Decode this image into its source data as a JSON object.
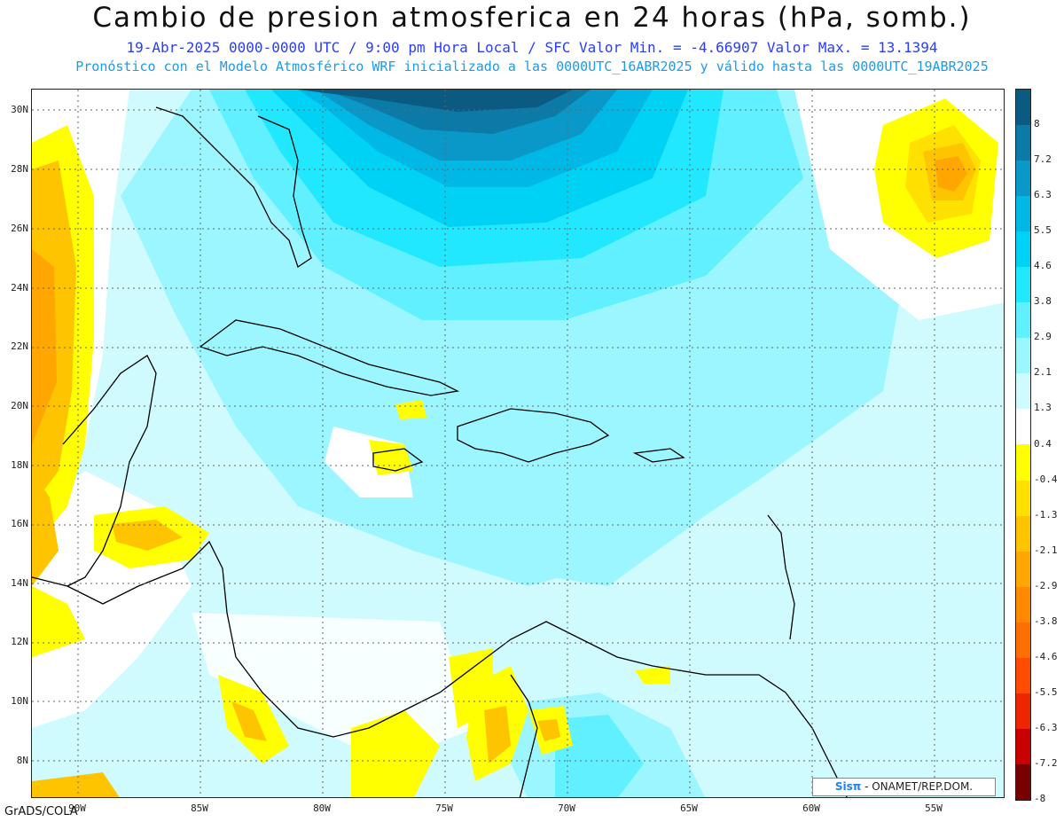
{
  "header": {
    "title": "Cambio de presion atmosferica en 24 horas (hPa, somb.)",
    "subtitle1": "19-Abr-2025   0000-0000 UTC / 9:00 pm Hora Local / SFC    Valor Min. = -4.66907  Valor Max. = 13.1394",
    "subtitle2": "Pronóstico con el Modelo Atmosférico WRF inicializado a las 0000UTC_16ABR2025 y válido hasta las  0000UTC_19ABR2025"
  },
  "map": {
    "lat_labels": [
      "30N",
      "28N",
      "26N",
      "24N",
      "22N",
      "20N",
      "18N",
      "16N",
      "14N",
      "12N",
      "10N",
      "8N"
    ],
    "lon_labels": [
      "90W",
      "85W",
      "80W",
      "75W",
      "70W",
      "65W",
      "60W",
      "55W"
    ]
  },
  "colorbar": {
    "labels": [
      "8",
      "7.2",
      "6.3",
      "5.5",
      "4.6",
      "3.8",
      "2.9",
      "2.1",
      "1.3",
      "0.4",
      "-0.4",
      "-1.3",
      "-2.1",
      "-2.9",
      "-3.8",
      "-4.6",
      "-5.5",
      "-6.3",
      "-7.2",
      "-8"
    ],
    "colors": [
      "#0a5a82",
      "#0c7aa6",
      "#0a98c8",
      "#00b8e6",
      "#00d2f5",
      "#22e8ff",
      "#60f0ff",
      "#9cf6ff",
      "#cffbff",
      "#ffffff",
      "#ffff00",
      "#ffe000",
      "#ffc400",
      "#ffa600",
      "#ff8a00",
      "#ff6e00",
      "#ff4c00",
      "#ee2600",
      "#c80000",
      "#780000"
    ]
  },
  "footer": {
    "credit_sis": "Sisπ",
    "credit_rest": " - ONAMET/REP.DOM.",
    "grads": "GrADS/COLA"
  }
}
